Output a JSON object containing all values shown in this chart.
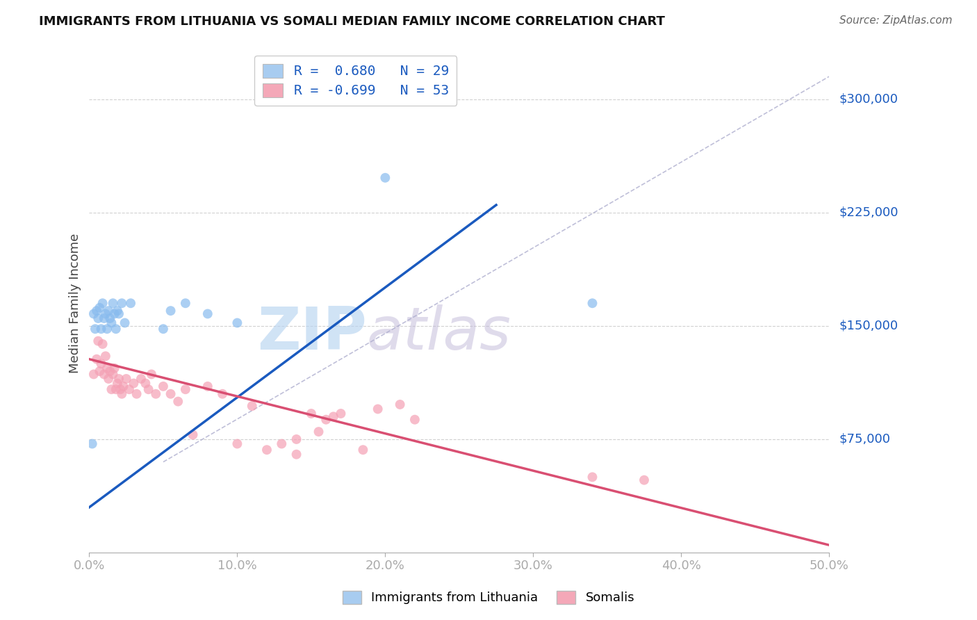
{
  "title": "IMMIGRANTS FROM LITHUANIA VS SOMALI MEDIAN FAMILY INCOME CORRELATION CHART",
  "source": "Source: ZipAtlas.com",
  "ylabel": "Median Family Income",
  "xlim": [
    0.0,
    0.5
  ],
  "ylim": [
    0,
    330000
  ],
  "xlabel_ticks": [
    "0.0%",
    "10.0%",
    "20.0%",
    "30.0%",
    "40.0%",
    "50.0%"
  ],
  "xtick_vals": [
    0.0,
    0.1,
    0.2,
    0.3,
    0.4,
    0.5
  ],
  "ytick_values": [
    75000,
    150000,
    225000,
    300000
  ],
  "ytick_labels": [
    "$75,000",
    "$150,000",
    "$225,000",
    "$300,000"
  ],
  "blue_scatter_x": [
    0.002,
    0.003,
    0.004,
    0.005,
    0.006,
    0.007,
    0.008,
    0.009,
    0.01,
    0.011,
    0.012,
    0.013,
    0.014,
    0.015,
    0.016,
    0.017,
    0.018,
    0.019,
    0.02,
    0.022,
    0.024,
    0.028,
    0.05,
    0.055,
    0.065,
    0.08,
    0.1,
    0.2,
    0.34
  ],
  "blue_scatter_y": [
    72000,
    158000,
    148000,
    160000,
    155000,
    162000,
    148000,
    165000,
    155000,
    158000,
    148000,
    160000,
    155000,
    152000,
    165000,
    158000,
    148000,
    160000,
    158000,
    165000,
    152000,
    165000,
    148000,
    160000,
    165000,
    158000,
    152000,
    248000,
    165000
  ],
  "pink_scatter_x": [
    0.003,
    0.005,
    0.006,
    0.007,
    0.008,
    0.009,
    0.01,
    0.011,
    0.012,
    0.013,
    0.014,
    0.015,
    0.016,
    0.017,
    0.018,
    0.019,
    0.02,
    0.021,
    0.022,
    0.023,
    0.025,
    0.027,
    0.03,
    0.032,
    0.035,
    0.038,
    0.04,
    0.042,
    0.045,
    0.05,
    0.055,
    0.06,
    0.065,
    0.07,
    0.08,
    0.09,
    0.1,
    0.11,
    0.12,
    0.13,
    0.14,
    0.15,
    0.16,
    0.17,
    0.185,
    0.195,
    0.21,
    0.22,
    0.14,
    0.155,
    0.165,
    0.34,
    0.375
  ],
  "pink_scatter_y": [
    118000,
    128000,
    140000,
    120000,
    125000,
    138000,
    118000,
    130000,
    122000,
    115000,
    120000,
    108000,
    118000,
    122000,
    108000,
    112000,
    115000,
    108000,
    105000,
    110000,
    115000,
    108000,
    112000,
    105000,
    115000,
    112000,
    108000,
    118000,
    105000,
    110000,
    105000,
    100000,
    108000,
    78000,
    110000,
    105000,
    72000,
    97000,
    68000,
    72000,
    65000,
    92000,
    88000,
    92000,
    68000,
    95000,
    98000,
    88000,
    75000,
    80000,
    90000,
    50000,
    48000
  ],
  "blue_line_x": [
    0.0,
    0.275
  ],
  "blue_line_y": [
    30000,
    230000
  ],
  "pink_line_x": [
    0.0,
    0.5
  ],
  "pink_line_y": [
    128000,
    5000
  ],
  "dash_line_x": [
    0.05,
    0.5
  ],
  "dash_line_y": [
    60000,
    315000
  ],
  "legend_entries": [
    {
      "label": "R =  0.680   N = 29",
      "color": "#a8ccf0"
    },
    {
      "label": "R = -0.699   N = 53",
      "color": "#f4a8b8"
    }
  ],
  "legend_bottom_labels": [
    "Immigrants from Lithuania",
    "Somalis"
  ],
  "watermark_zip": "ZIP",
  "watermark_atlas": "atlas",
  "background_color": "#ffffff",
  "grid_color": "#cccccc",
  "blue_scatter_color": "#88bbee",
  "pink_scatter_color": "#f4a0b4",
  "blue_line_color": "#1a5abf",
  "pink_line_color": "#d94f72",
  "dash_color": "#aaaacc",
  "right_label_color": "#1a5abf",
  "title_fontsize": 13,
  "source_fontsize": 11,
  "tick_fontsize": 13,
  "ylabel_fontsize": 13
}
